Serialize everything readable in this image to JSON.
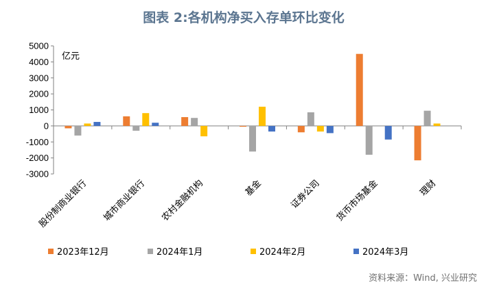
{
  "title": "图表 2:各机构净买入存单环比变化",
  "source": "资料来源：Wind, 兴业研究",
  "chart_data": {
    "type": "bar",
    "unit_label": "亿元",
    "ylim": [
      -3000,
      5000
    ],
    "yticks": [
      5000,
      4000,
      3000,
      2000,
      1000,
      0,
      -1000,
      -2000,
      -3000
    ],
    "categories": [
      "股份制商业银行",
      "城市商业银行",
      "农村金融机构",
      "基金",
      "证券公司",
      "货币市场基金",
      "理财"
    ],
    "series": [
      {
        "name": "2023年12月",
        "color": "#ed7d31",
        "values": [
          -150,
          600,
          550,
          -50,
          -400,
          4500,
          -2150
        ]
      },
      {
        "name": "2024年1月",
        "color": "#a5a5a5",
        "values": [
          -600,
          -300,
          500,
          -1600,
          850,
          -1800,
          950
        ]
      },
      {
        "name": "2024年2月",
        "color": "#ffc000",
        "values": [
          150,
          800,
          -650,
          1200,
          -350,
          0,
          150
        ]
      },
      {
        "name": "2024年3月",
        "color": "#4472c4",
        "values": [
          250,
          200,
          0,
          -350,
          -450,
          -850,
          0
        ]
      }
    ],
    "legend_position": "bottom",
    "grid": false
  }
}
